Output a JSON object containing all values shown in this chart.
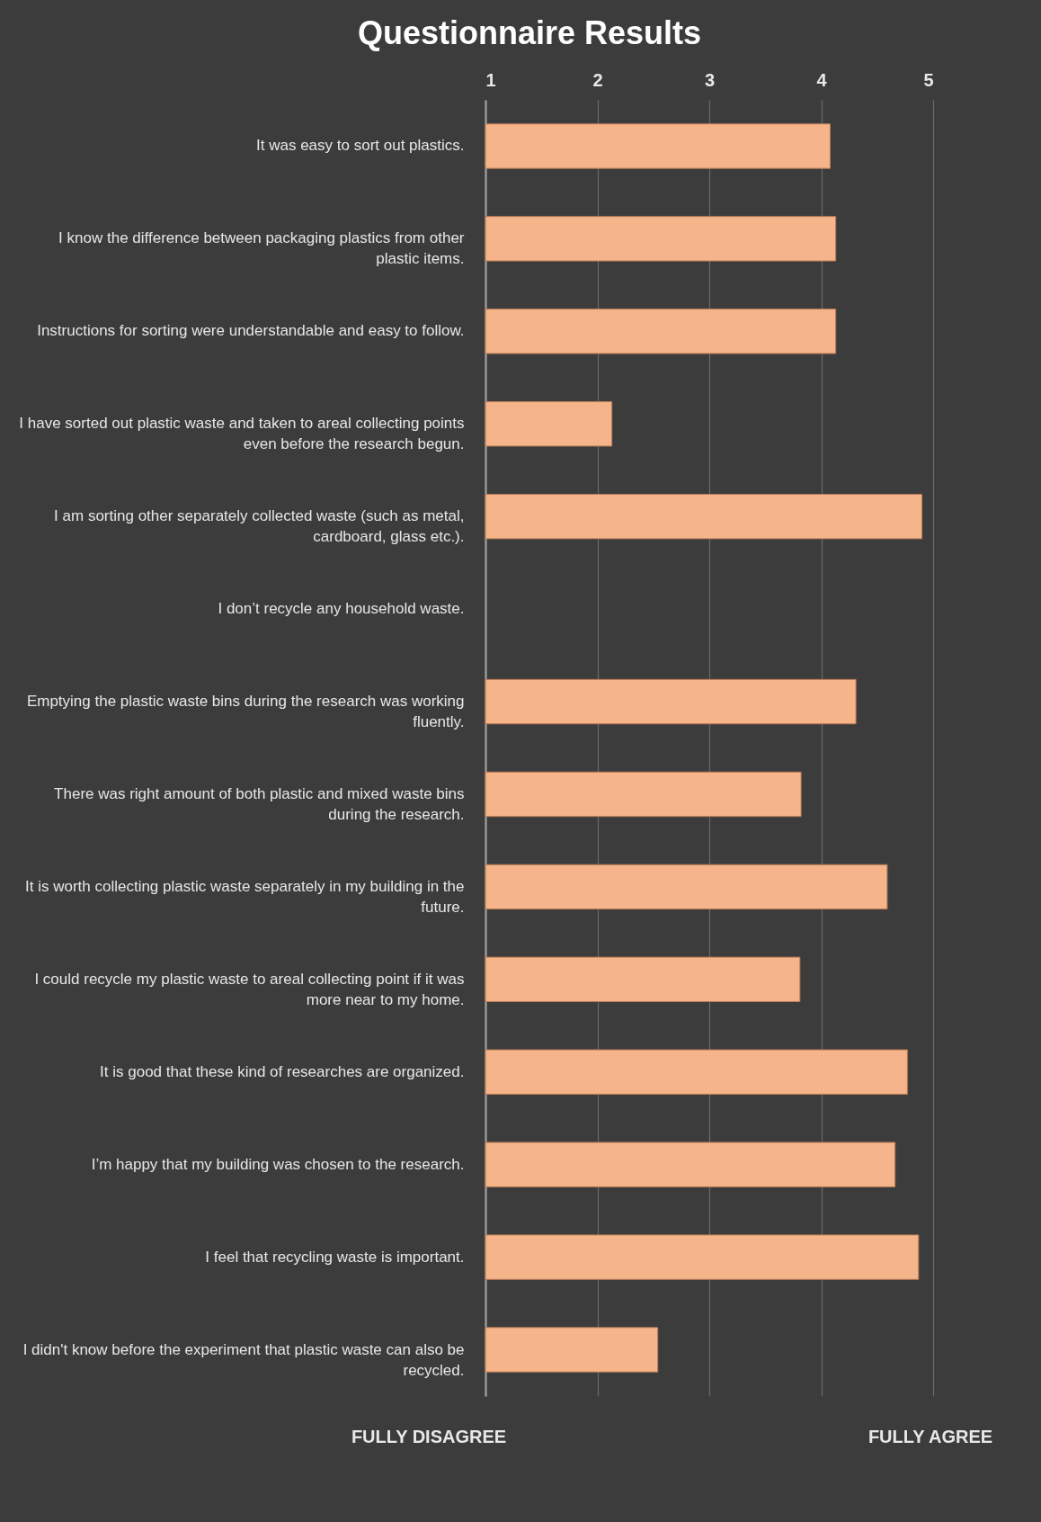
{
  "chart_data": {
    "type": "bar",
    "orientation": "horizontal",
    "title": "Questionnaire Results",
    "categories": [
      "It was easy to sort out plastics.",
      "I know the difference between packaging plastics from other plastic items.",
      "Instructions for sorting were understandable and easy to follow.",
      "I have sorted out plastic waste and taken to areal collecting points even before the research begun.",
      "I am sorting other separately collected waste (such as metal, cardboard, glass etc.).",
      "I don’t recycle any household waste.",
      "Emptying the plastic waste bins during the research was working fluently.",
      "There was right amount of both plastic and mixed waste bins during the research.",
      "It is worth collecting plastic waste separately in my building in the future.",
      "I could recycle my plastic waste to areal collecting point if it was more near to my home.",
      "It is good that these kind of researches are organized.",
      "I’m happy that my building was chosen to the research.",
      "I feel that recycling waste is important.",
      "I didn't know before the experiment that plastic waste can also be recycled."
    ],
    "values": [
      4.08,
      4.13,
      4.13,
      2.13,
      4.9,
      null,
      4.31,
      3.82,
      4.59,
      3.81,
      4.77,
      4.66,
      4.87,
      2.54
    ],
    "color": "#f5b48a",
    "xlim": [
      1,
      5
    ],
    "xticks": [
      1,
      2,
      3,
      4,
      5
    ],
    "grid": "x",
    "annotations": [
      "FULLY DISAGREE",
      "FULLY AGREE"
    ]
  }
}
